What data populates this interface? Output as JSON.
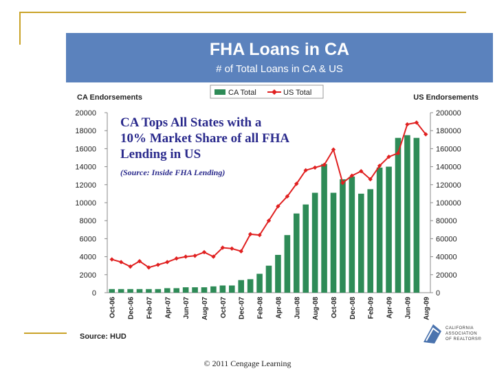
{
  "header": {
    "title": "FHA Loans in CA",
    "subtitle": "# of Total Loans in CA & US"
  },
  "annotation": {
    "line1": "CA Tops All States with a",
    "line2": "10% Market Share of all FHA",
    "line3": "Lending in US",
    "source": "(Source: Inside FHA Lending)"
  },
  "source_note": "Source: HUD",
  "logo": {
    "line1": "CALIFORNIA",
    "line2": "ASSOCIATION",
    "line3": "OF REALTORS®"
  },
  "copyright": "© 2011 Cengage Learning",
  "colors": {
    "header_bg": "#5b82bd",
    "bar": "#2e8b57",
    "line": "#e02020",
    "accent": "#c9a227"
  },
  "chart_data": {
    "type": "bar",
    "categories": [
      "Oct-06",
      "Nov-06",
      "Dec-06",
      "Jan-07",
      "Feb-07",
      "Mar-07",
      "Apr-07",
      "May-07",
      "Jun-07",
      "Jul-07",
      "Aug-07",
      "Sep-07",
      "Oct-07",
      "Nov-07",
      "Dec-07",
      "Jan-08",
      "Feb-08",
      "Mar-08",
      "Apr-08",
      "May-08",
      "Jun-08",
      "Jul-08",
      "Aug-08",
      "Sep-08",
      "Oct-08",
      "Nov-08",
      "Dec-08",
      "Jan-09",
      "Feb-09",
      "Mar-09",
      "Apr-09",
      "May-09",
      "Jun-09",
      "Jul-09",
      "Aug-09"
    ],
    "tick_labels": [
      "Oct-06",
      "Dec-06",
      "Feb-07",
      "Apr-07",
      "Jun-07",
      "Aug-07",
      "Oct-07",
      "Dec-07",
      "Feb-08",
      "Apr-08",
      "Jun-08",
      "Aug-08",
      "Oct-08",
      "Dec-08",
      "Feb-09",
      "Apr-09",
      "Jun-09",
      "Aug-09"
    ],
    "series": [
      {
        "name": "CA Total",
        "kind": "bar",
        "axis": "left",
        "values": [
          400,
          400,
          400,
          400,
          400,
          400,
          500,
          500,
          600,
          600,
          600,
          700,
          800,
          800,
          1400,
          1500,
          2100,
          3000,
          4200,
          6400,
          8800,
          9800,
          11100,
          14300,
          11100,
          12600,
          12900,
          11000,
          11500,
          13900,
          14000,
          17200,
          17500,
          17200,
          0
        ]
      },
      {
        "name": "US Total",
        "kind": "line",
        "axis": "right",
        "values": [
          37000,
          34000,
          29000,
          35000,
          28000,
          31000,
          34000,
          38000,
          40000,
          41000,
          45000,
          40000,
          50000,
          49000,
          46000,
          65000,
          64000,
          80000,
          96000,
          107000,
          121000,
          136000,
          139000,
          142000,
          159000,
          122000,
          130000,
          135000,
          126000,
          141000,
          151000,
          155000,
          187000,
          189000,
          176000
        ]
      }
    ],
    "xlabel": "",
    "ylabel_left": "CA Endorsements",
    "ylabel_right": "US Endorsements",
    "ylim_left": [
      0,
      20000
    ],
    "ylim_right": [
      0,
      200000
    ],
    "yticks_left": [
      "0",
      "2000",
      "4000",
      "6000",
      "8000",
      "10000",
      "12000",
      "14000",
      "16000",
      "18000",
      "20000"
    ],
    "yticks_right": [
      "0",
      "20000",
      "40000",
      "60000",
      "80000",
      "100000",
      "120000",
      "140000",
      "160000",
      "180000",
      "200000"
    ],
    "legend": {
      "position": "top-center",
      "items": [
        "CA Total",
        "US Total"
      ]
    }
  }
}
